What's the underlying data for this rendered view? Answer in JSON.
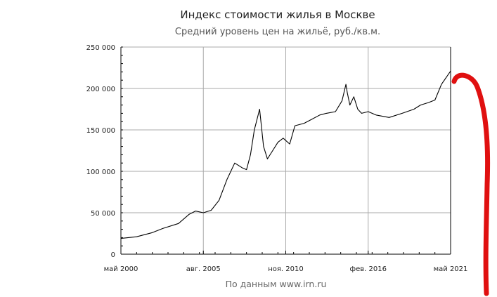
{
  "title": "Индекс стоимости жилья в Москве",
  "subtitle": "Средний уровень цен на жильё, руб./кв.м.",
  "source": "По данным www.irn.ru",
  "colors": {
    "line": "#000000",
    "grid": "#aaaaaa",
    "annotation": "#e01010"
  },
  "chart_data": {
    "type": "line",
    "title": "Индекс стоимости жилья в Москве",
    "subtitle": "Средний уровень цен на жильё, руб./кв.м.",
    "xlabel": "",
    "ylabel": "",
    "ylim": [
      0,
      250000
    ],
    "xlim": [
      "2000-05",
      "2021-05"
    ],
    "grid": true,
    "y_ticks": [
      0,
      50000,
      100000,
      150000,
      200000,
      250000
    ],
    "y_tick_labels": [
      "0",
      "50 000",
      "100 000",
      "150 000",
      "200 000",
      "250 000"
    ],
    "x_ticks": [
      "2000-05",
      "2005-08",
      "2010-11",
      "2016-02",
      "2021-05"
    ],
    "x_tick_labels": [
      "май 2000",
      "авг. 2005",
      "ноя. 2010",
      "фев. 2016",
      "май 2021"
    ],
    "series": [
      {
        "x": [
          "2000-05",
          "2001-05",
          "2002-05",
          "2003-01",
          "2004-01",
          "2004-09",
          "2005-02",
          "2005-08",
          "2006-02",
          "2006-08",
          "2007-02",
          "2007-08",
          "2008-02",
          "2008-05",
          "2008-08",
          "2008-11",
          "2009-03",
          "2009-06",
          "2009-09",
          "2010-01",
          "2010-05",
          "2010-09",
          "2011-02",
          "2011-06",
          "2012-01",
          "2012-06",
          "2013-01",
          "2013-06",
          "2014-01",
          "2014-06",
          "2014-09",
          "2014-10",
          "2014-12",
          "2015-03",
          "2015-06",
          "2015-09",
          "2016-02",
          "2016-08",
          "2017-06",
          "2018-04",
          "2019-01",
          "2019-06",
          "2019-12",
          "2020-05",
          "2020-10",
          "2021-05"
        ],
        "y": [
          19000,
          21000,
          26000,
          31000,
          37000,
          48000,
          52000,
          50000,
          53000,
          65000,
          90000,
          110000,
          104000,
          102000,
          120000,
          150000,
          175000,
          130000,
          115000,
          125000,
          135000,
          140000,
          133000,
          155000,
          158000,
          162000,
          168000,
          170000,
          172000,
          185000,
          205000,
          195000,
          180000,
          190000,
          175000,
          170000,
          172000,
          168000,
          165000,
          170000,
          175000,
          180000,
          183000,
          186000,
          205000,
          221000
        ]
      }
    ]
  }
}
